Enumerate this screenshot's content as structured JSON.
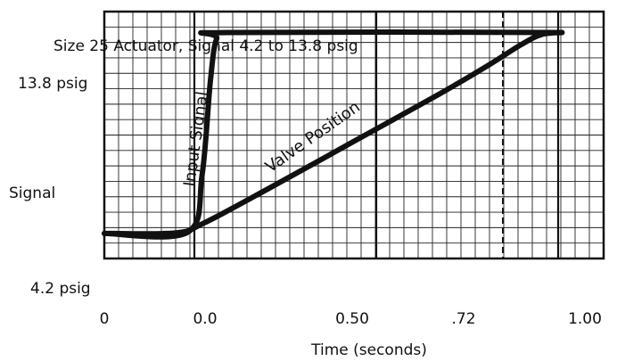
{
  "chart_data": {
    "type": "line",
    "title": "Size 25 Actuator, Signal 4.2 to 13.8 psig",
    "xlabel": "Time (seconds)",
    "ylabel": "Signal",
    "x_tick_labels": [
      "0",
      "0.0",
      "0.50",
      ".72",
      "1.00"
    ],
    "y_tick_labels": [
      "13.8 psig",
      "4.2 psig"
    ],
    "series": [
      {
        "name": "Input Signal",
        "points": [
          [
            0,
            4.2
          ],
          [
            0.2,
            4.25
          ],
          [
            0.235,
            7.0
          ],
          [
            0.255,
            11.5
          ],
          [
            0.27,
            13.5
          ],
          [
            0.3,
            13.8
          ],
          [
            1.1,
            13.8
          ]
        ]
      },
      {
        "name": "Valve Position",
        "points": [
          [
            0,
            4.2
          ],
          [
            0.17,
            4.22
          ],
          [
            0.24,
            4.7
          ],
          [
            0.4,
            6.4
          ],
          [
            0.6,
            8.6
          ],
          [
            0.8,
            10.8
          ],
          [
            0.92,
            12.2
          ],
          [
            1.0,
            13.2
          ],
          [
            1.05,
            13.7
          ],
          [
            1.1,
            13.8
          ]
        ]
      }
    ],
    "xlim": [
      0,
      1.2
    ],
    "ylim": [
      3.0,
      14.8
    ],
    "grid": true,
    "colors": {
      "curve": "#111111",
      "grid": "#222222",
      "background": "#ffffff"
    }
  }
}
